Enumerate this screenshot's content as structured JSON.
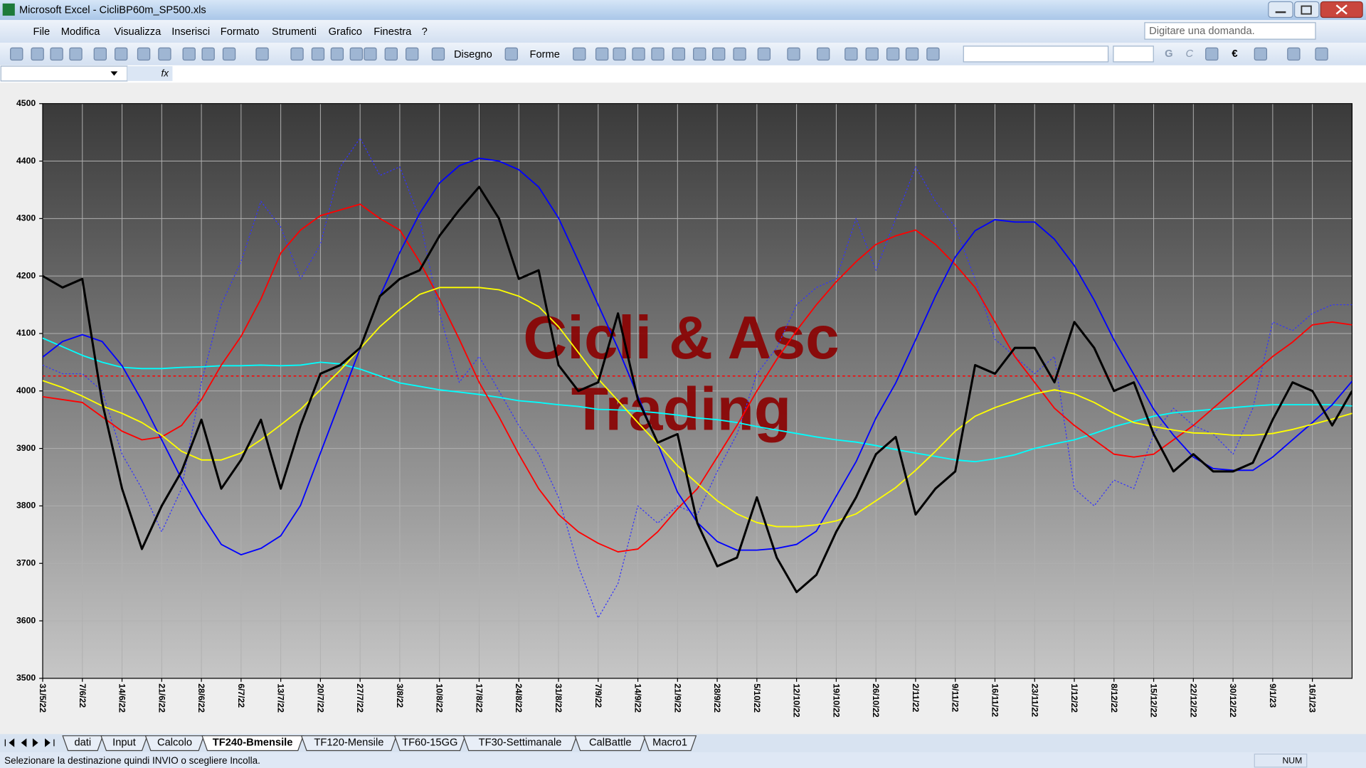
{
  "window": {
    "title": "Microsoft Excel - CicliBP60m_SP500.xls"
  },
  "menu": [
    "File",
    "Modifica",
    "Visualizza",
    "Inserisci",
    "Formato",
    "Strumenti",
    "Grafico",
    "Finestra",
    "?"
  ],
  "help_box": "Digitare una domanda.",
  "toolbar": {
    "draw_menu": "Disegno",
    "shapes_menu": "Forme",
    "bold": "G",
    "italic": "C",
    "euro": "€"
  },
  "formula_bar": {
    "fx": "fx"
  },
  "sheet_tabs": {
    "tabs": [
      "dati",
      "Input",
      "Calcolo",
      "TF240-Bmensile",
      "TF120-Mensile",
      "TF60-15GG",
      "TF30-Settimanale",
      "CalBattle",
      "Macro1"
    ],
    "active": 3
  },
  "status_bar": {
    "message": "Selezionare la destinazione quindi INVIO o scegliere Incolla.",
    "num": "NUM"
  },
  "chart_data": {
    "type": "line",
    "annotations": [
      "Cicli & Asc",
      "Trading"
    ],
    "categories": [
      "31/5/22",
      null,
      "7/6/22",
      null,
      "14/6/22",
      null,
      "21/6/22",
      null,
      "28/6/22",
      null,
      "6/7/22",
      null,
      "13/7/22",
      null,
      "20/7/22",
      null,
      "27/7/22",
      null,
      "3/8/22",
      null,
      "10/8/22",
      null,
      "17/8/22",
      null,
      "24/8/22",
      null,
      "31/8/22",
      null,
      "7/9/22",
      null,
      "14/9/22",
      null,
      "21/9/22",
      null,
      "28/9/22",
      null,
      "5/10/22",
      null,
      "12/10/22",
      null,
      "19/10/22",
      null,
      "26/10/22",
      null,
      "2/11/22",
      null,
      "9/11/22",
      null,
      "16/11/22",
      null,
      "23/11/22",
      null,
      "1/12/22",
      null,
      "8/12/22",
      null,
      "15/12/22",
      null,
      "22/12/22",
      null,
      "30/12/22",
      null,
      "9/1/23",
      null,
      "16/1/23",
      null,
      null
    ],
    "series": [
      {
        "color": "#3333ff",
        "style": "dotted",
        "width": 1,
        "values": [
          4045,
          4030,
          4030,
          4000,
          3890,
          3830,
          3755,
          3830,
          4015,
          4150,
          4225,
          4330,
          4285,
          4195,
          4255,
          4390,
          4440,
          4375,
          4390,
          4300,
          4135,
          4015,
          4060,
          4000,
          3940,
          3890,
          3815,
          3695,
          3605,
          3665,
          3800,
          3770,
          3800,
          3785,
          3860,
          3925,
          4030,
          4075,
          4150,
          4180,
          4195,
          4300,
          4210,
          4300,
          4390,
          4330,
          4285,
          4195,
          4090,
          4060,
          4030,
          4060,
          3830,
          3800,
          3845,
          3830,
          3925,
          3970,
          3940,
          3925,
          3890,
          3970,
          4120,
          4105,
          4135,
          4150,
          4150
        ]
      },
      {
        "color": "#00ffff",
        "style": "solid",
        "width": 1.5,
        "values": [
          4092,
          4077,
          4062,
          4050,
          4041,
          4039,
          4039,
          4041,
          4042,
          4044,
          4044,
          4045,
          4044,
          4045,
          4050,
          4047,
          4038,
          4026,
          4014,
          4008,
          4002,
          3998,
          3994,
          3989,
          3983,
          3980,
          3976,
          3973,
          3968,
          3967,
          3965,
          3962,
          3958,
          3953,
          3950,
          3945,
          3938,
          3932,
          3926,
          3920,
          3915,
          3911,
          3905,
          3898,
          3892,
          3886,
          3880,
          3877,
          3882,
          3889,
          3900,
          3908,
          3915,
          3926,
          3938,
          3947,
          3956,
          3962,
          3965,
          3968,
          3971,
          3974,
          3976,
          3976,
          3976,
          3976,
          3974
        ]
      },
      {
        "color": "#ff0000",
        "style": "solid",
        "width": 1.5,
        "values": [
          3990,
          3985,
          3980,
          3955,
          3930,
          3915,
          3920,
          3940,
          3985,
          4045,
          4095,
          4160,
          4240,
          4280,
          4305,
          4315,
          4325,
          4300,
          4280,
          4225,
          4160,
          4090,
          4015,
          3955,
          3890,
          3830,
          3785,
          3755,
          3735,
          3720,
          3725,
          3755,
          3795,
          3830,
          3885,
          3940,
          4000,
          4055,
          4105,
          4150,
          4190,
          4225,
          4255,
          4270,
          4280,
          4255,
          4220,
          4180,
          4120,
          4060,
          4015,
          3970,
          3940,
          3915,
          3890,
          3885,
          3890,
          3915,
          3940,
          3970,
          4000,
          4030,
          4060,
          4085,
          4115,
          4120,
          4115
        ]
      },
      {
        "color": "#0000ff",
        "style": "solid",
        "width": 1.5,
        "values": [
          4059,
          4086,
          4098,
          4086,
          4044,
          3983,
          3915,
          3847,
          3786,
          3733,
          3715,
          3726,
          3748,
          3801,
          3892,
          3983,
          4074,
          4165,
          4241,
          4309,
          4362,
          4392,
          4405,
          4400,
          4385,
          4355,
          4301,
          4226,
          4150,
          4074,
          3991,
          3908,
          3824,
          3771,
          3738,
          3723,
          3723,
          3726,
          3733,
          3756,
          3817,
          3877,
          3953,
          4014,
          4089,
          4165,
          4233,
          4279,
          4298,
          4294,
          4294,
          4264,
          4218,
          4158,
          4089,
          4029,
          3968,
          3923,
          3885,
          3865,
          3862,
          3862,
          3885,
          3915,
          3945,
          3976,
          4017
        ]
      },
      {
        "color": "#ffff00",
        "style": "solid",
        "width": 1.5,
        "values": [
          4018,
          4006,
          3991,
          3974,
          3961,
          3945,
          3923,
          3895,
          3880,
          3880,
          3892,
          3915,
          3941,
          3968,
          4002,
          4036,
          4074,
          4112,
          4142,
          4168,
          4180,
          4180,
          4180,
          4176,
          4165,
          4147,
          4112,
          4067,
          4021,
          3983,
          3945,
          3908,
          3870,
          3839,
          3809,
          3786,
          3771,
          3764,
          3764,
          3767,
          3774,
          3786,
          3809,
          3832,
          3862,
          3895,
          3930,
          3956,
          3971,
          3983,
          3995,
          4002,
          3995,
          3980,
          3961,
          3945,
          3938,
          3932,
          3927,
          3926,
          3923,
          3923,
          3926,
          3933,
          3942,
          3951,
          3961
        ]
      },
      {
        "color": "#000000",
        "style": "solid",
        "width": 2.5,
        "values": [
          4200,
          4180,
          4195,
          3980,
          3830,
          3725,
          3800,
          3860,
          3950,
          3830,
          3880,
          3950,
          3830,
          3940,
          4030,
          4045,
          4075,
          4165,
          4195,
          4210,
          4270,
          4315,
          4355,
          4300,
          4195,
          4210,
          4045,
          4000,
          4015,
          4135,
          3985,
          3910,
          3925,
          3770,
          3695,
          3710,
          3815,
          3710,
          3650,
          3680,
          3755,
          3815,
          3890,
          3920,
          3785,
          3830,
          3860,
          4045,
          4030,
          4075,
          4075,
          4015,
          4120,
          4075,
          4000,
          4015,
          3925,
          3860,
          3890,
          3860,
          3860,
          3875,
          3950,
          4015,
          4000,
          3940,
          4000
        ]
      }
    ],
    "reference_line": {
      "value": 4026,
      "color": "#ff0000",
      "style": "dashed"
    },
    "ylim": [
      3500,
      4500
    ],
    "yticks": [
      3500,
      3600,
      3700,
      3800,
      3900,
      4000,
      4100,
      4200,
      4300,
      4400,
      4500
    ],
    "grid": true,
    "legend": false,
    "plot_gradient": [
      "#3a3a3a",
      "#c6c6c6"
    ]
  }
}
